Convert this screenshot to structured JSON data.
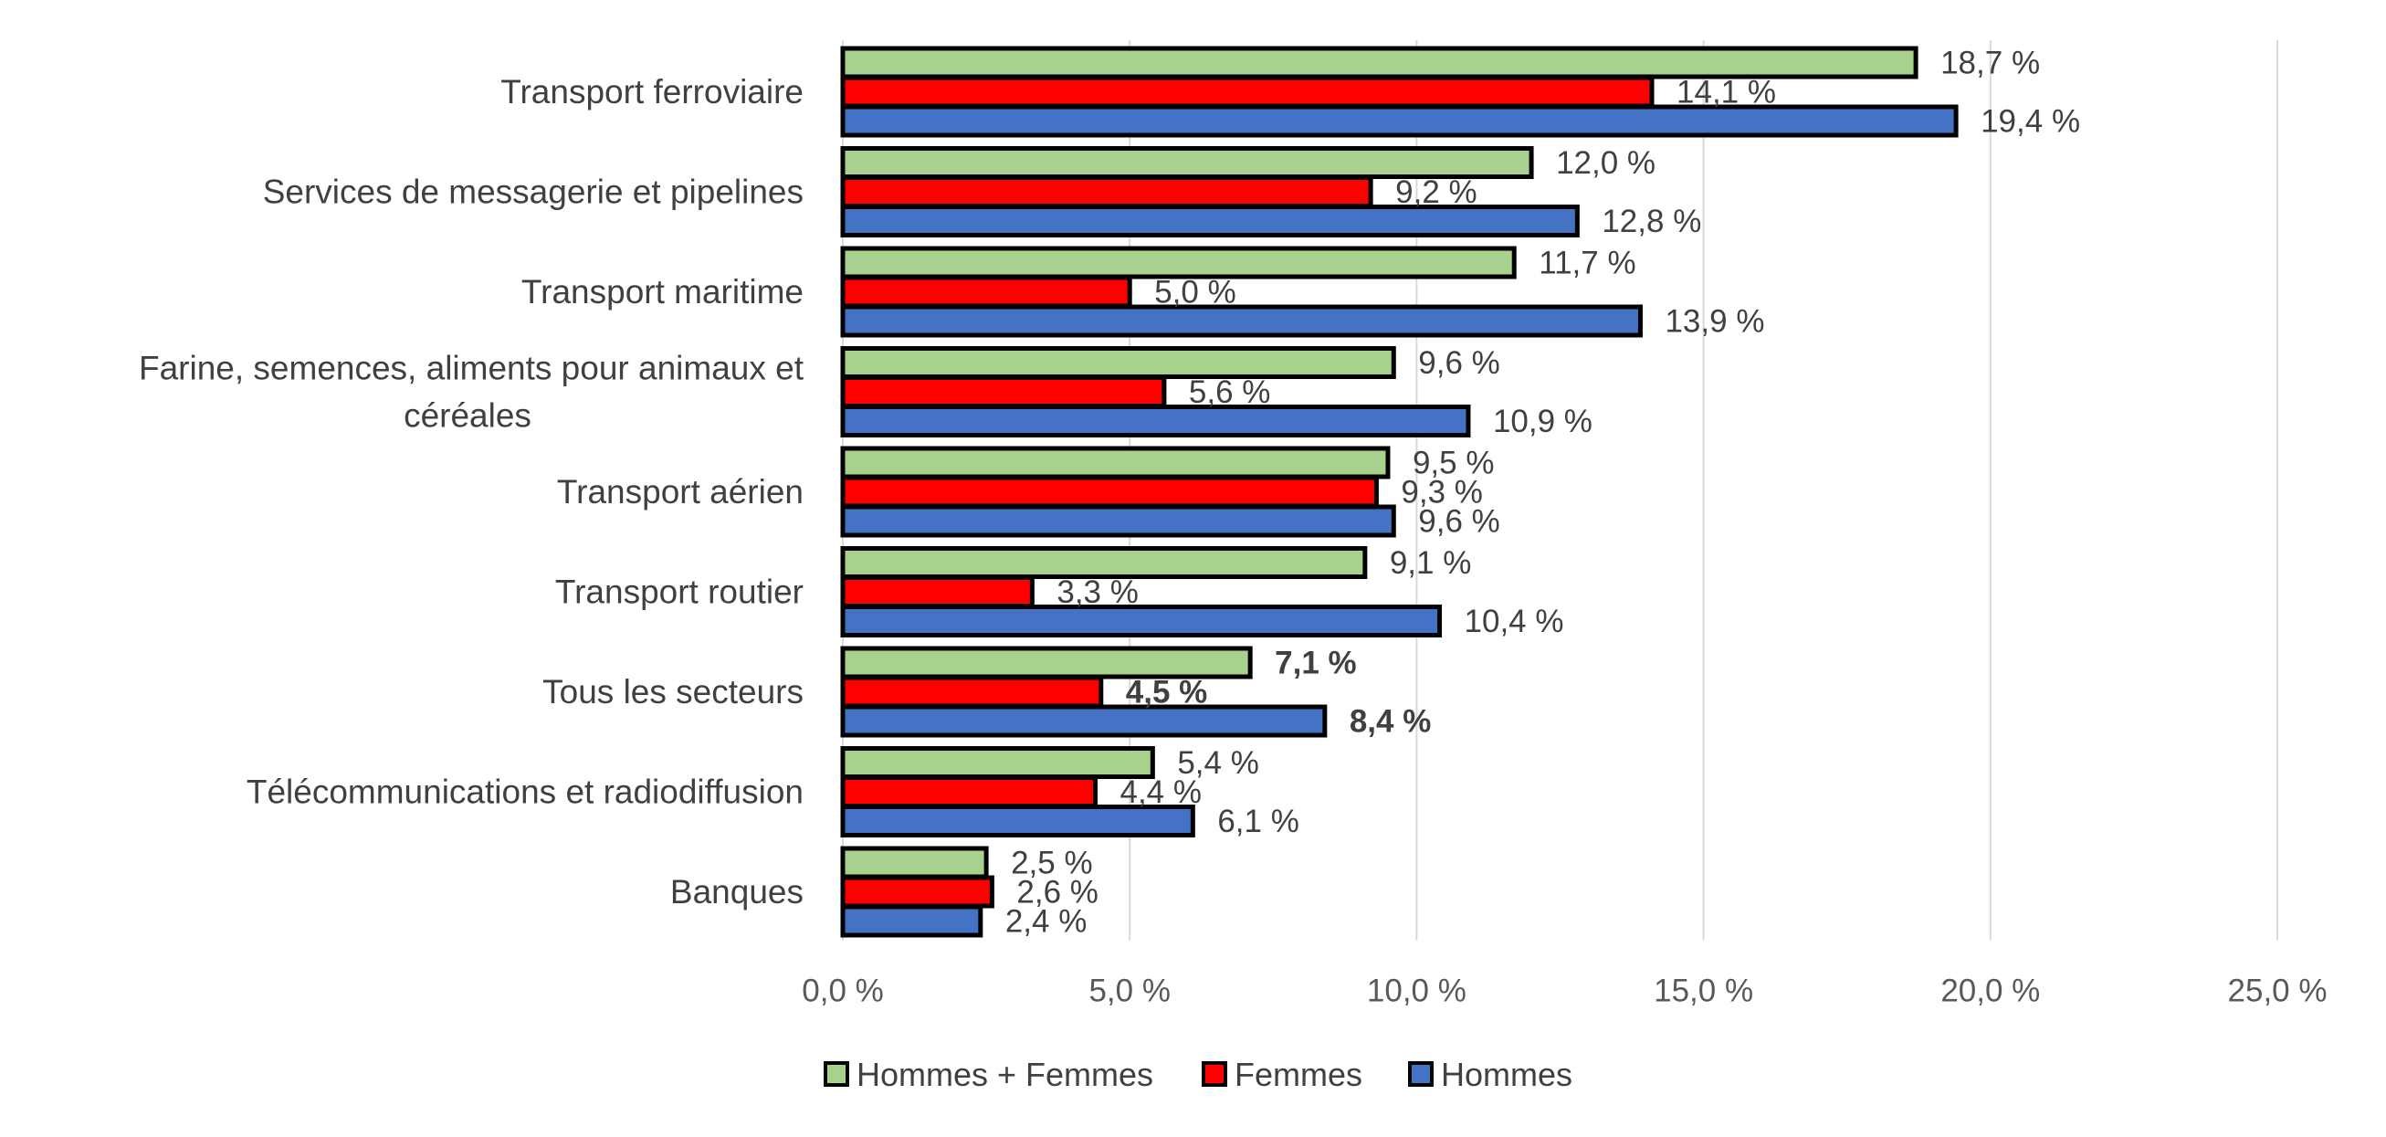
{
  "chart_data": {
    "type": "bar",
    "orientation": "horizontal",
    "title": "",
    "xlabel": "",
    "ylabel": "",
    "xlim": [
      0,
      25
    ],
    "x_ticks": [
      0,
      5,
      10,
      15,
      20,
      25
    ],
    "x_tick_labels": [
      "0,0 %",
      "5,0 %",
      "10,0 %",
      "15,0 %",
      "20,0 %",
      "25,0 %"
    ],
    "grid": true,
    "legend_position": "bottom",
    "categories": [
      [
        "Transport ferroviaire"
      ],
      [
        "Services de messagerie et pipelines"
      ],
      [
        "Transport maritime"
      ],
      [
        "Farine, semences, aliments pour animaux et",
        "céréales"
      ],
      [
        "Transport aérien"
      ],
      [
        "Transport routier"
      ],
      [
        "Tous les secteurs"
      ],
      [
        "Télécommunications et radiodiffusion"
      ],
      [
        "Banques"
      ]
    ],
    "series": [
      {
        "name": "Hommes + Femmes",
        "color": "#a9d18e",
        "values": [
          18.7,
          12.0,
          11.7,
          9.6,
          9.5,
          9.1,
          7.1,
          5.4,
          2.5
        ],
        "labels": [
          "18,7 %",
          "12,0 %",
          "11,7 %",
          "9,6 %",
          "9,5 %",
          "9,1 %",
          "7,1 %",
          "5,4 %",
          "2,5 %"
        ]
      },
      {
        "name": "Femmes",
        "color": "#ff0000",
        "values": [
          14.1,
          9.2,
          5.0,
          5.6,
          9.3,
          3.3,
          4.5,
          4.4,
          2.6
        ],
        "labels": [
          "14,1 %",
          "9,2 %",
          "5,0 %",
          "5,6 %",
          "9,3 %",
          "3,3 %",
          "4,5 %",
          "4,4 %",
          "2,6 %"
        ]
      },
      {
        "name": "Hommes",
        "color": "#4472c4",
        "values": [
          19.4,
          12.8,
          13.9,
          10.9,
          9.6,
          10.4,
          8.4,
          6.1,
          2.4
        ],
        "labels": [
          "19,4 %",
          "12,8 %",
          "13,9 %",
          "10,9 %",
          "9,6 %",
          "10,4 %",
          "8,4 %",
          "6,1 %",
          "2,4 %"
        ]
      }
    ],
    "highlight_category": "Tous les secteurs"
  }
}
